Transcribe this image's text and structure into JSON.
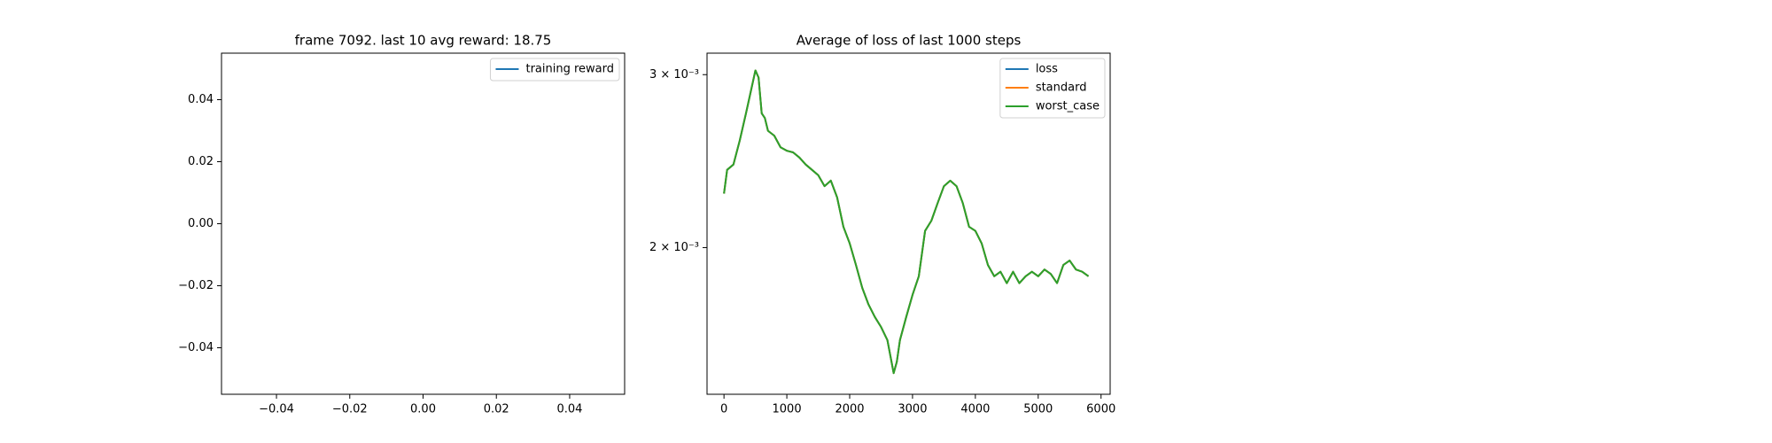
{
  "chart_data": [
    {
      "type": "line",
      "title": "frame 7092. last 10 avg reward: 18.75",
      "x": [],
      "series": [
        {
          "name": "training reward",
          "color": "#1f77b4",
          "values": []
        }
      ],
      "xlim": [
        -0.055,
        0.055
      ],
      "ylim": [
        -0.055,
        0.055
      ],
      "xticks": [
        {
          "value": -0.04,
          "label": "−0.04"
        },
        {
          "value": -0.02,
          "label": "−0.02"
        },
        {
          "value": 0,
          "label": "0.00"
        },
        0.02,
        0.04
      ],
      "yticks": [
        {
          "value": -0.04,
          "label": "−0.04"
        },
        {
          "value": -0.02,
          "label": "−0.02"
        },
        {
          "value": 0,
          "label": "0.00"
        },
        0.02,
        0.04
      ],
      "grid": false,
      "legend": "upper right"
    },
    {
      "type": "line",
      "title": "Average of loss of last 1000 steps",
      "x": [
        0,
        50,
        150,
        250,
        350,
        450,
        500,
        550,
        600,
        650,
        700,
        800,
        900,
        1000,
        1100,
        1200,
        1300,
        1400,
        1500,
        1600,
        1700,
        1800,
        1900,
        2000,
        2100,
        2200,
        2300,
        2400,
        2500,
        2600,
        2700,
        2750,
        2800,
        2900,
        3000,
        3100,
        3200,
        3300,
        3400,
        3500,
        3600,
        3700,
        3800,
        3900,
        4000,
        4100,
        4200,
        4300,
        4400,
        4500,
        4600,
        4700,
        4800,
        4900,
        5000,
        5100,
        5200,
        5300,
        5400,
        5500,
        5600,
        5700,
        5800
      ],
      "series": [
        {
          "name": "loss",
          "color": "#1f77b4",
          "values": [
            0.00227,
            0.0024,
            0.00243,
            0.00257,
            0.00274,
            0.00293,
            0.00303,
            0.00298,
            0.00274,
            0.00271,
            0.00263,
            0.0026,
            0.00253,
            0.00251,
            0.0025,
            0.00247,
            0.00243,
            0.0024,
            0.00237,
            0.00231,
            0.00234,
            0.00225,
            0.0021,
            0.00202,
            0.00192,
            0.00182,
            0.00175,
            0.0017,
            0.00166,
            0.00161,
            0.00149,
            0.00153,
            0.00161,
            0.0017,
            0.00179,
            0.00187,
            0.00208,
            0.00213,
            0.00222,
            0.00231,
            0.00234,
            0.00231,
            0.00222,
            0.0021,
            0.00208,
            0.00202,
            0.00192,
            0.00187,
            0.00189,
            0.00184,
            0.00189,
            0.00184,
            0.00187,
            0.00189,
            0.00187,
            0.0019,
            0.00188,
            0.00184,
            0.00192,
            0.00194,
            0.0019,
            0.00189,
            0.00187
          ]
        },
        {
          "name": "standard",
          "color": "#ff7f0e",
          "values": [
            0.00227,
            0.0024,
            0.00243,
            0.00257,
            0.00274,
            0.00293,
            0.00303,
            0.00298,
            0.00274,
            0.00271,
            0.00263,
            0.0026,
            0.00253,
            0.00251,
            0.0025,
            0.00247,
            0.00243,
            0.0024,
            0.00237,
            0.00231,
            0.00234,
            0.00225,
            0.0021,
            0.00202,
            0.00192,
            0.00182,
            0.00175,
            0.0017,
            0.00166,
            0.00161,
            0.00149,
            0.00153,
            0.00161,
            0.0017,
            0.00179,
            0.00187,
            0.00208,
            0.00213,
            0.00222,
            0.00231,
            0.00234,
            0.00231,
            0.00222,
            0.0021,
            0.00208,
            0.00202,
            0.00192,
            0.00187,
            0.00189,
            0.00184,
            0.00189,
            0.00184,
            0.00187,
            0.00189,
            0.00187,
            0.0019,
            0.00188,
            0.00184,
            0.00192,
            0.00194,
            0.0019,
            0.00189,
            0.00187
          ]
        },
        {
          "name": "worst_case",
          "color": "#2ca02c",
          "values": [
            0.00227,
            0.0024,
            0.00243,
            0.00257,
            0.00274,
            0.00293,
            0.00303,
            0.00298,
            0.00274,
            0.00271,
            0.00263,
            0.0026,
            0.00253,
            0.00251,
            0.0025,
            0.00247,
            0.00243,
            0.0024,
            0.00237,
            0.00231,
            0.00234,
            0.00225,
            0.0021,
            0.00202,
            0.00192,
            0.00182,
            0.00175,
            0.0017,
            0.00166,
            0.00161,
            0.00149,
            0.00153,
            0.00161,
            0.0017,
            0.00179,
            0.00187,
            0.00208,
            0.00213,
            0.00222,
            0.00231,
            0.00234,
            0.00231,
            0.00222,
            0.0021,
            0.00208,
            0.00202,
            0.00192,
            0.00187,
            0.00189,
            0.00184,
            0.00189,
            0.00184,
            0.00187,
            0.00189,
            0.00187,
            0.0019,
            0.00188,
            0.00184,
            0.00192,
            0.00194,
            0.0019,
            0.00189,
            0.00187
          ]
        }
      ],
      "xlim": [
        -270,
        6145
      ],
      "ylim": [
        0.001418,
        0.003155
      ],
      "yscale": "log",
      "xticks": [
        0,
        1000,
        2000,
        3000,
        4000,
        5000,
        6000
      ],
      "yticks": [
        {
          "value": 0.002,
          "label": "2 × 10⁻³"
        },
        {
          "value": 0.003,
          "label": "3 × 10⁻³"
        }
      ],
      "grid": false,
      "legend": "upper right"
    }
  ]
}
